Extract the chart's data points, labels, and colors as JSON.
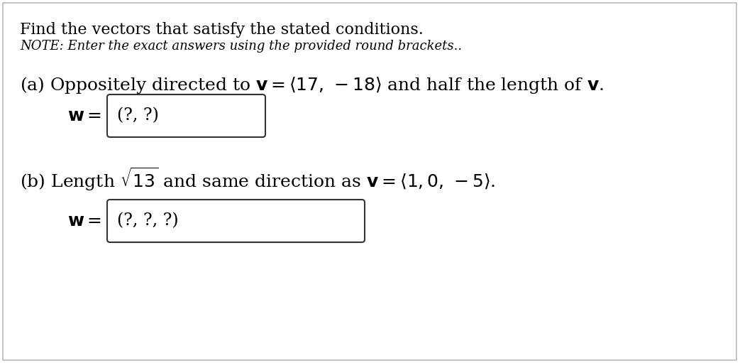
{
  "background_color": "#ffffff",
  "border_color": "#bbbbbb",
  "title_line1": "Find the vectors that satisfy the stated conditions.",
  "title_line2": "NOTE: Enter the exact answers using the provided round brackets..",
  "line_a": "(a) Oppositely directed to $\\mathbf{v} = \\langle 17,\\,-18\\rangle$ and half the length of $\\mathbf{v}$.",
  "line_b": "(b) Length $\\sqrt{13}$ and same direction as $\\mathbf{v} = \\langle 1, 0,\\,-5\\rangle$.",
  "w_label": "$\\mathbf{w} =$",
  "box_a_text": "(?, ?)",
  "box_b_text": "(?, ?, ?)",
  "text_color": "#000000",
  "box_edge_color": "#333333",
  "font_size_title": 16,
  "font_size_note": 13,
  "font_size_part": 18,
  "font_size_box": 17,
  "font_size_w": 18
}
